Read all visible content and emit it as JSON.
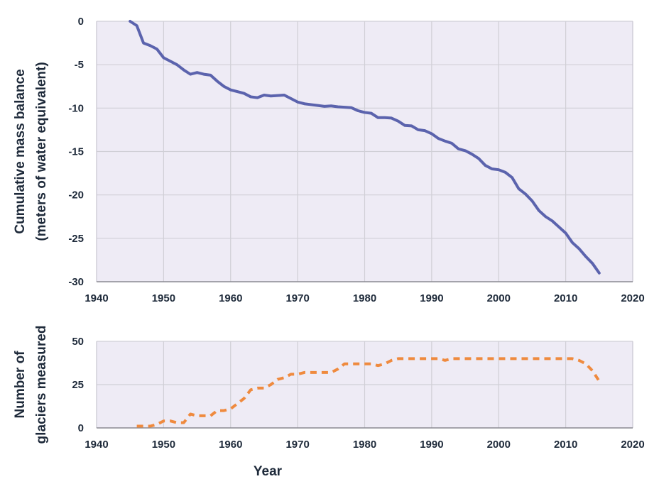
{
  "chart_data": [
    {
      "type": "line",
      "ylabel_lines": [
        "Cumulative mass balance",
        "(meters of water equivalent)"
      ],
      "xlim": [
        1940,
        2020
      ],
      "ylim": [
        -30,
        0
      ],
      "xticks": [
        1940,
        1950,
        1960,
        1970,
        1980,
        1990,
        2000,
        2010,
        2020
      ],
      "yticks": [
        0,
        -5,
        -10,
        -15,
        -20,
        -25,
        -30
      ],
      "grid": true,
      "series": [
        {
          "color": "#5b63ad",
          "style": "solid",
          "x": [
            1945,
            1946,
            1947,
            1948,
            1949,
            1950,
            1951,
            1952,
            1953,
            1954,
            1955,
            1956,
            1957,
            1958,
            1959,
            1960,
            1961,
            1962,
            1963,
            1964,
            1965,
            1966,
            1967,
            1968,
            1969,
            1970,
            1971,
            1972,
            1973,
            1974,
            1975,
            1976,
            1977,
            1978,
            1979,
            1980,
            1981,
            1982,
            1983,
            1984,
            1985,
            1986,
            1987,
            1988,
            1989,
            1990,
            1991,
            1992,
            1993,
            1994,
            1995,
            1996,
            1997,
            1998,
            1999,
            2000,
            2001,
            2002,
            2003,
            2004,
            2005,
            2006,
            2007,
            2008,
            2009,
            2010,
            2011,
            2012,
            2013,
            2014,
            2015
          ],
          "y": [
            0,
            -0.5,
            -2.5,
            -2.8,
            -3.2,
            -4.2,
            -4.6,
            -5.0,
            -5.6,
            -6.1,
            -5.9,
            -6.1,
            -6.2,
            -6.9,
            -7.5,
            -7.9,
            -8.1,
            -8.3,
            -8.7,
            -8.8,
            -8.5,
            -8.6,
            -8.55,
            -8.5,
            -8.9,
            -9.3,
            -9.5,
            -9.6,
            -9.7,
            -9.8,
            -9.75,
            -9.85,
            -9.9,
            -9.95,
            -10.3,
            -10.5,
            -10.6,
            -11.1,
            -11.1,
            -11.15,
            -11.5,
            -12.0,
            -12.05,
            -12.5,
            -12.6,
            -12.95,
            -13.5,
            -13.8,
            -14.05,
            -14.7,
            -14.9,
            -15.3,
            -15.8,
            -16.6,
            -17.0,
            -17.1,
            -17.4,
            -18.0,
            -19.3,
            -19.9,
            -20.7,
            -21.8,
            -22.5,
            -23.0,
            -23.7,
            -24.4,
            -25.5,
            -26.2,
            -27.1,
            -27.9,
            -29.0
          ]
        }
      ]
    },
    {
      "type": "line",
      "ylabel_lines": [
        "Number of",
        "glaciers measured"
      ],
      "xlabel": "Year",
      "xlim": [
        1940,
        2020
      ],
      "ylim": [
        0,
        50
      ],
      "xticks": [
        1940,
        1950,
        1960,
        1970,
        1980,
        1990,
        2000,
        2010,
        2020
      ],
      "yticks": [
        50,
        25,
        0
      ],
      "grid": true,
      "series": [
        {
          "color": "#ef8a3e",
          "style": "dashed",
          "x": [
            1946,
            1947,
            1948,
            1949,
            1950,
            1951,
            1952,
            1953,
            1954,
            1955,
            1956,
            1957,
            1958,
            1959,
            1960,
            1961,
            1962,
            1963,
            1964,
            1965,
            1966,
            1967,
            1968,
            1969,
            1970,
            1971,
            1972,
            1973,
            1974,
            1975,
            1976,
            1977,
            1978,
            1979,
            1980,
            1981,
            1982,
            1983,
            1984,
            1985,
            1986,
            1987,
            1988,
            1989,
            1990,
            1991,
            1992,
            1993,
            1994,
            1995,
            1996,
            1997,
            1998,
            1999,
            2000,
            2001,
            2002,
            2003,
            2004,
            2005,
            2006,
            2007,
            2008,
            2009,
            2010,
            2011,
            2012,
            2013,
            2014,
            2015
          ],
          "y": [
            1,
            1,
            1,
            2,
            4,
            4,
            3,
            3,
            8,
            7,
            7,
            7,
            10,
            10,
            11,
            14,
            17,
            22,
            23,
            23,
            25,
            28,
            29,
            31,
            31,
            32,
            32,
            32,
            32,
            32,
            34,
            37,
            37,
            37,
            37,
            37,
            36,
            37,
            39,
            40,
            40,
            40,
            40,
            40,
            40,
            40,
            39,
            40,
            40,
            40,
            40,
            40,
            40,
            40,
            40,
            40,
            40,
            40,
            40,
            40,
            40,
            40,
            40,
            40,
            40,
            40,
            39,
            37,
            33,
            27
          ]
        }
      ]
    }
  ]
}
